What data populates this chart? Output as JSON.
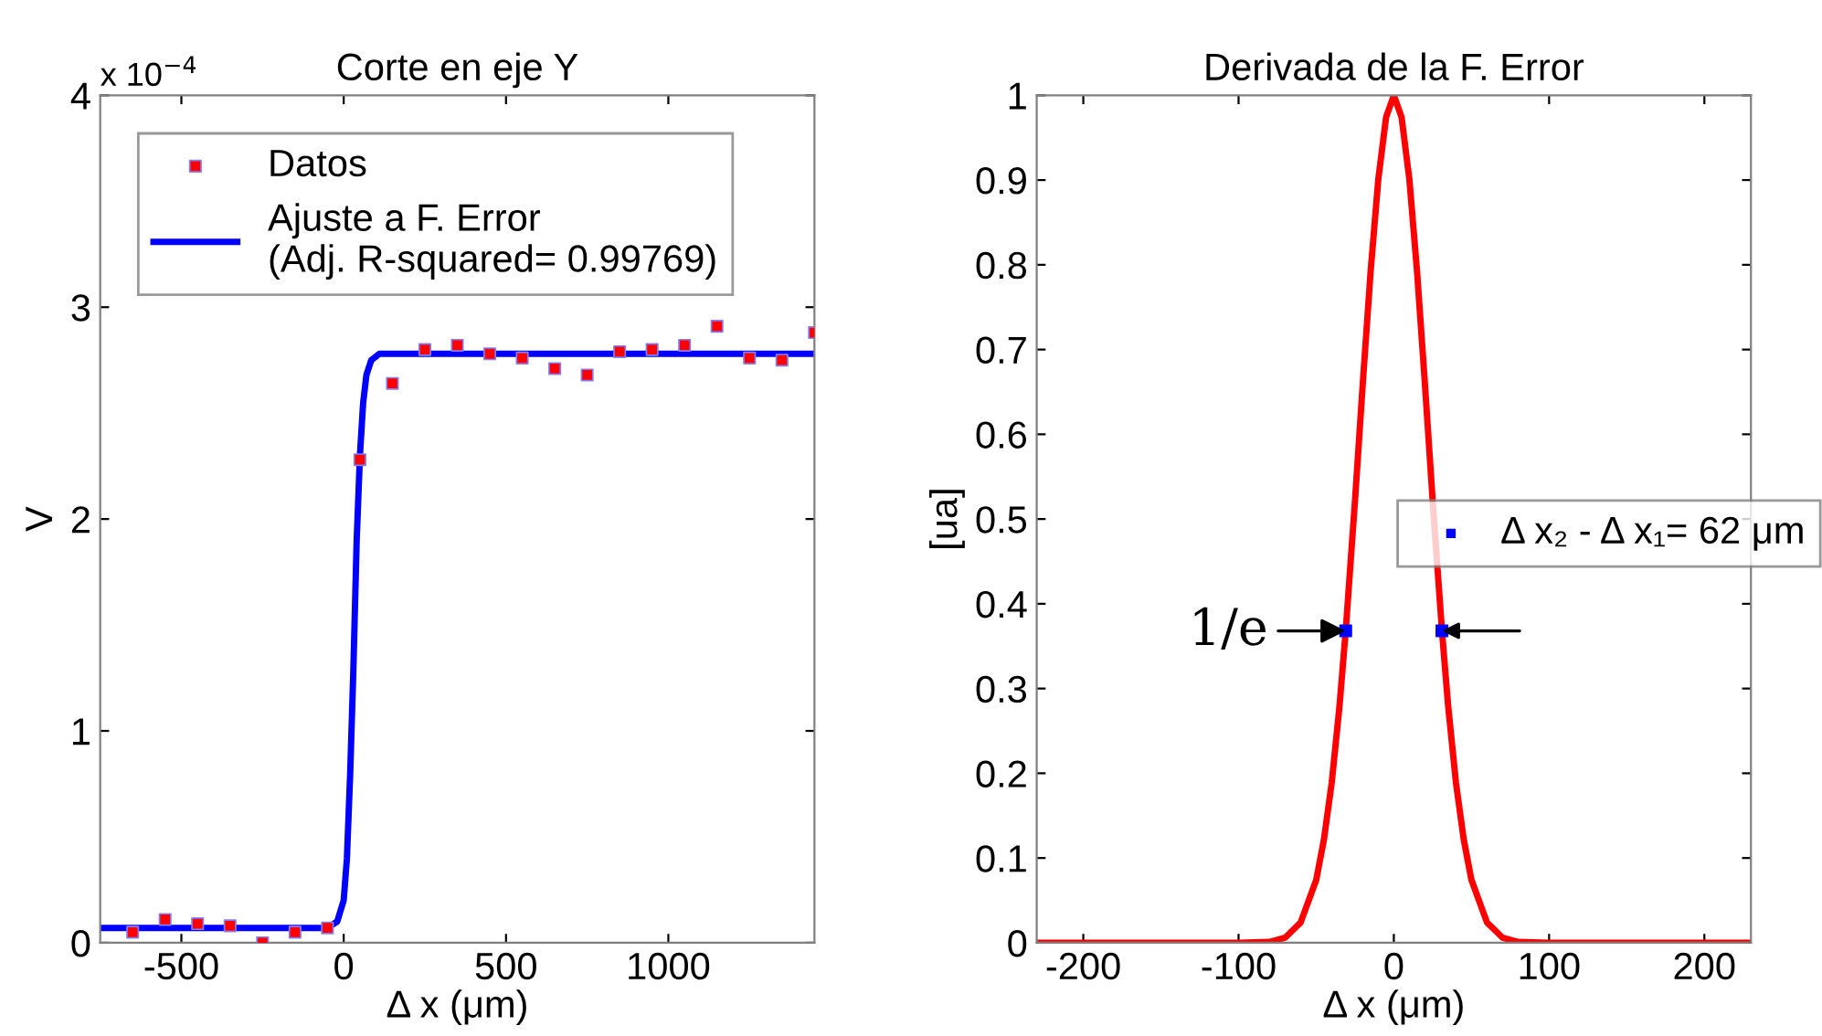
{
  "chart_data": [
    {
      "type": "scatter",
      "title": "Corte en eje Y",
      "xlabel": "Δ x (μm)",
      "ylabel": "V",
      "xlim": [
        -750,
        1450
      ],
      "xticks": [
        -500,
        0,
        500,
        1000
      ],
      "ylim": [
        0,
        4
      ],
      "yticks": [
        0,
        1,
        2,
        3,
        4
      ],
      "grid": false,
      "legend": "top left",
      "annotations": [
        "x 10$^{−4}$"
      ],
      "series": [
        {
          "name": "Datos",
          "marker": "square",
          "color": "#ff0000",
          "x": [
            -650,
            -550,
            -450,
            -350,
            -250,
            -150,
            -50,
            50,
            150,
            250,
            350,
            450,
            550,
            650,
            750,
            850,
            950,
            1050,
            1150,
            1250,
            1350,
            1450
          ],
          "values": [
            0.05,
            0.11,
            0.09,
            0.08,
            0.0,
            0.05,
            0.07,
            2.28,
            2.64,
            2.8,
            2.82,
            2.78,
            2.76,
            2.71,
            2.68,
            2.79,
            2.8,
            2.82,
            2.91,
            2.76,
            2.75,
            2.88
          ]
        },
        {
          "name": "Ajuste a F. Error\n(Adj. R-squared= 0.99769)",
          "type": "line",
          "marker": "none",
          "color": "#0000ff",
          "x": [
            -750,
            -50,
            -20,
            0,
            10,
            20,
            30,
            40,
            50,
            60,
            70,
            85,
            110,
            1450
          ],
          "values": [
            0.07,
            0.07,
            0.1,
            0.2,
            0.4,
            0.8,
            1.3,
            1.9,
            2.3,
            2.55,
            2.68,
            2.75,
            2.78,
            2.78
          ]
        }
      ]
    },
    {
      "type": "line",
      "title": "Derivada de la F. Error",
      "xlabel": "Δ x (μm)",
      "ylabel": "[ua]",
      "xlim": [
        -230,
        230
      ],
      "xticks": [
        -200,
        -100,
        0,
        100,
        200
      ],
      "ylim": [
        0,
        1
      ],
      "yticks": [
        0,
        0.1,
        0.2,
        0.3,
        0.4,
        0.5,
        0.6,
        0.7,
        0.8,
        0.9,
        1
      ],
      "grid": false,
      "legend": "right",
      "annotations": [
        {
          "text": "1/e",
          "x": -31,
          "y": 0.368
        }
      ],
      "series": [
        {
          "marker": "none",
          "color": "#ff0000",
          "x": [
            -230,
            -100,
            -80,
            -70,
            -60,
            -50,
            -45,
            -40,
            -35,
            -31,
            -25,
            -20,
            -15,
            -10,
            -5,
            0,
            5,
            10,
            15,
            20,
            25,
            31,
            35,
            40,
            45,
            50,
            60,
            70,
            80,
            100,
            230
          ],
          "values": [
            0,
            0,
            0.001,
            0.006,
            0.024,
            0.074,
            0.122,
            0.189,
            0.279,
            0.368,
            0.522,
            0.66,
            0.791,
            0.901,
            0.974,
            1,
            0.974,
            0.901,
            0.791,
            0.66,
            0.522,
            0.368,
            0.279,
            0.189,
            0.122,
            0.074,
            0.024,
            0.006,
            0.001,
            0,
            0
          ]
        },
        {
          "name": "Δ x₂ - Δ x₁= 62 μm",
          "type": "scatter",
          "marker": "square",
          "color": "#0000ff",
          "x": [
            -31,
            31
          ],
          "values": [
            0.368,
            0.368
          ]
        }
      ]
    }
  ]
}
